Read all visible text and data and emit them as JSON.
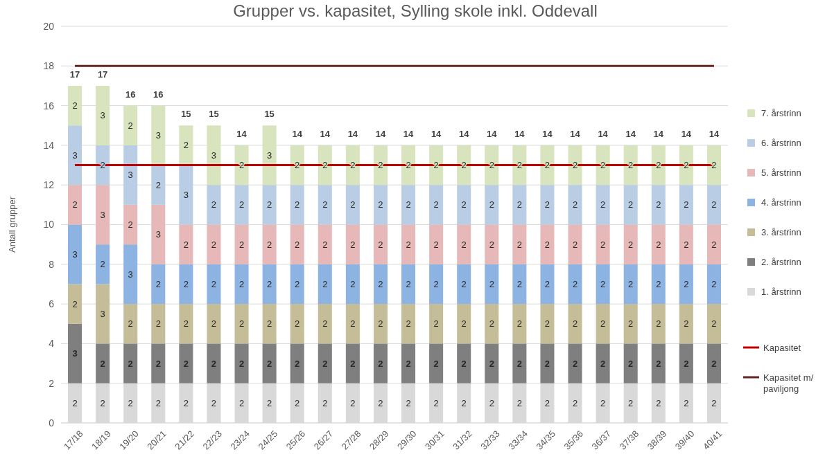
{
  "chart_data": {
    "type": "bar",
    "title": "Grupper vs. kapasitet, Sylling skole inkl. Oddevall",
    "ylabel": "Antall grupper",
    "stacked": true,
    "categories": [
      "17/18",
      "18/19",
      "19/20",
      "20/21",
      "21/22",
      "22/23",
      "23/24",
      "24/25",
      "25/26",
      "26/27",
      "27/28",
      "28/29",
      "29/30",
      "30/31",
      "31/32",
      "32/33",
      "33/34",
      "34/35",
      "35/36",
      "36/37",
      "37/38",
      "38/39",
      "39/40",
      "40/41"
    ],
    "series": [
      {
        "name": "1. årstrinn",
        "color": "#d9d9d9",
        "values": [
          2,
          2,
          2,
          2,
          2,
          2,
          2,
          2,
          2,
          2,
          2,
          2,
          2,
          2,
          2,
          2,
          2,
          2,
          2,
          2,
          2,
          2,
          2,
          2
        ],
        "value_labels": [
          "2",
          "2",
          "2",
          "2",
          "2",
          "2",
          "2",
          "2",
          "2",
          "2",
          "2",
          "2",
          "2",
          "2",
          "2",
          "2",
          "2",
          "2",
          "2",
          "2",
          "2",
          "2",
          "2",
          "2"
        ]
      },
      {
        "name": "2. årstrinn",
        "color": "#7f7f7f",
        "values": [
          3,
          2,
          2,
          2,
          2,
          2,
          2,
          2,
          2,
          2,
          2,
          2,
          2,
          2,
          2,
          2,
          2,
          2,
          2,
          2,
          2,
          2,
          2,
          2
        ],
        "value_labels": [
          "3",
          "2",
          "2",
          "2",
          "2",
          "2",
          "2",
          "2",
          "2",
          "2",
          "2",
          "2",
          "2",
          "2",
          "2",
          "2",
          "2",
          "2",
          "2",
          "2",
          "2",
          "2",
          "2",
          "2"
        ]
      },
      {
        "name": "3. årstrinn",
        "color": "#c4bd97",
        "values": [
          2,
          3,
          2,
          2,
          2,
          2,
          2,
          2,
          2,
          2,
          2,
          2,
          2,
          2,
          2,
          2,
          2,
          2,
          2,
          2,
          2,
          2,
          2,
          2
        ],
        "value_labels": [
          "2",
          "3",
          "2",
          "2",
          "2",
          "2",
          "2",
          "2",
          "2",
          "2",
          "2",
          "2",
          "2",
          "2",
          "2",
          "2",
          "2",
          "2",
          "2",
          "2",
          "2",
          "2",
          "2",
          "2"
        ]
      },
      {
        "name": "4. årstrinn",
        "color": "#8db3e2",
        "values": [
          3,
          2,
          3,
          2,
          2,
          2,
          2,
          2,
          2,
          2,
          2,
          2,
          2,
          2,
          2,
          2,
          2,
          2,
          2,
          2,
          2,
          2,
          2,
          2
        ],
        "value_labels": [
          "3",
          "2",
          "3",
          "2",
          "2",
          "2",
          "2",
          "2",
          "2",
          "2",
          "2",
          "2",
          "2",
          "2",
          "2",
          "2",
          "2",
          "2",
          "2",
          "2",
          "2",
          "2",
          "2",
          "2"
        ]
      },
      {
        "name": "5. årstrinn",
        "color": "#e6b9b8",
        "values": [
          2,
          3,
          2,
          3,
          2,
          2,
          2,
          2,
          2,
          2,
          2,
          2,
          2,
          2,
          2,
          2,
          2,
          2,
          2,
          2,
          2,
          2,
          2,
          2
        ],
        "value_labels": [
          "2",
          "3",
          "2",
          "3",
          "2",
          "2",
          "2",
          "2",
          "2",
          "2",
          "2",
          "2",
          "2",
          "2",
          "2",
          "2",
          "2",
          "2",
          "2",
          "2",
          "2",
          "2",
          "2",
          "2"
        ]
      },
      {
        "name": "6. årstrinn",
        "color": "#b9cde5",
        "values": [
          3,
          2,
          3,
          2,
          3,
          2,
          2,
          2,
          2,
          2,
          2,
          2,
          2,
          2,
          2,
          2,
          2,
          2,
          2,
          2,
          2,
          2,
          2,
          2
        ],
        "value_labels": [
          "3",
          "2",
          "3",
          "2",
          "3",
          "2",
          "2",
          "2",
          "2",
          "2",
          "2",
          "2",
          "2",
          "2",
          "2",
          "2",
          "2",
          "2",
          "2",
          "2",
          "2",
          "2",
          "2",
          "2"
        ]
      },
      {
        "name": "7. årstrinn",
        "color": "#d7e4bd",
        "values": [
          2,
          3,
          2,
          3,
          2,
          3,
          2,
          3,
          2,
          2,
          2,
          2,
          2,
          2,
          2,
          2,
          2,
          2,
          2,
          2,
          2,
          2,
          2,
          2
        ],
        "value_labels": [
          "2",
          "3",
          "2",
          "3",
          "2",
          "3",
          "2",
          "3",
          "2",
          "2",
          "2",
          "2",
          "2",
          "2",
          "2",
          "2",
          "2",
          "2",
          "2",
          "2",
          "2",
          "2",
          "2",
          "2"
        ]
      },
      {
        "name": "Kapasitet",
        "type": "line",
        "color": "#c00000",
        "values": [
          13,
          13,
          13,
          13,
          13,
          13,
          13,
          13,
          13,
          13,
          13,
          13,
          13,
          13,
          13,
          13,
          13,
          13,
          13,
          13,
          13,
          13,
          13,
          13
        ]
      },
      {
        "name": "Kapasitet m/ paviljong",
        "type": "line",
        "color": "#632523",
        "values": [
          18,
          18,
          18,
          18,
          18,
          18,
          18,
          18,
          18,
          18,
          18,
          18,
          18,
          18,
          18,
          18,
          18,
          18,
          18,
          18,
          18,
          18,
          18,
          18
        ]
      }
    ],
    "totals": [
      "17",
      "17",
      "16",
      "16",
      "15",
      "15",
      "14",
      "15",
      "14",
      "14",
      "14",
      "14",
      "14",
      "14",
      "14",
      "14",
      "14",
      "14",
      "14",
      "14",
      "14",
      "14",
      "14",
      "14"
    ],
    "ylim": [
      0,
      20
    ],
    "yticks": [
      0,
      2,
      4,
      6,
      8,
      10,
      12,
      14,
      16,
      18,
      20
    ],
    "grid": "y",
    "legend": "right"
  }
}
